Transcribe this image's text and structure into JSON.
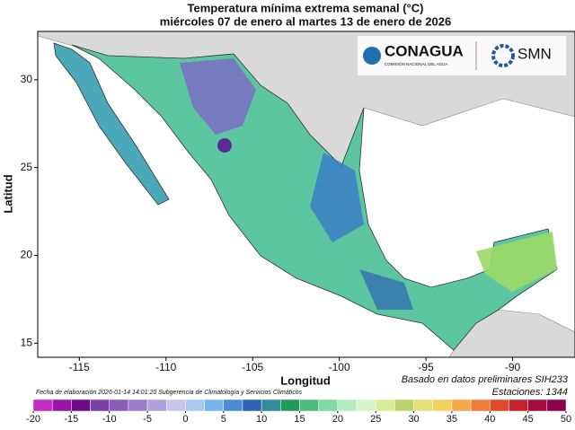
{
  "header": {
    "title": "Temperatura mínima extrema semanal (°C)",
    "subtitle": "miércoles 07 de enero al martes 13 de enero de 2026"
  },
  "logos": {
    "conagua": "CONAGUA",
    "conagua_sub": "COMISIÓN NACIONAL DEL AGUA",
    "smn": "SMN"
  },
  "map": {
    "xlabel": "Longitud",
    "ylabel": "Latitud",
    "xlim": [
      -117.4,
      -86.4
    ],
    "ylim": [
      14.2,
      32.75
    ],
    "xticks": [
      -115,
      -110,
      -105,
      -100,
      -95,
      -90
    ],
    "yticks": [
      15,
      20,
      25,
      30
    ]
  },
  "footer": {
    "date": "Fecha de elaboración 2026-01-14 14:01:20 Subgerencia de Climatología y Servicios Climáticos",
    "source": "Basado en datos preliminares SIH233",
    "stations": "Estaciones:  1344"
  },
  "colorbar": {
    "ticks": [
      -20,
      -15,
      -10,
      -5,
      0,
      5,
      10,
      15,
      20,
      25,
      30,
      35,
      40,
      45,
      50
    ],
    "colors": [
      "#c42ac4",
      "#9a14a8",
      "#6e0a86",
      "#7a40a8",
      "#8a5cb8",
      "#9c7ccc",
      "#b0a0dc",
      "#c8c4ec",
      "#a8c8f0",
      "#7ab4ec",
      "#4a8cd4",
      "#2e64b4",
      "#2e8c9c",
      "#1e9a5a",
      "#4cbc78",
      "#84d8a4",
      "#b4ecc0",
      "#d4f4c8",
      "#d8ec98",
      "#b8d468",
      "#e4e07c",
      "#f4d060",
      "#f4a848",
      "#ec7c38",
      "#e04a28",
      "#c8202c",
      "#a80c3c",
      "#8c0050"
    ]
  }
}
